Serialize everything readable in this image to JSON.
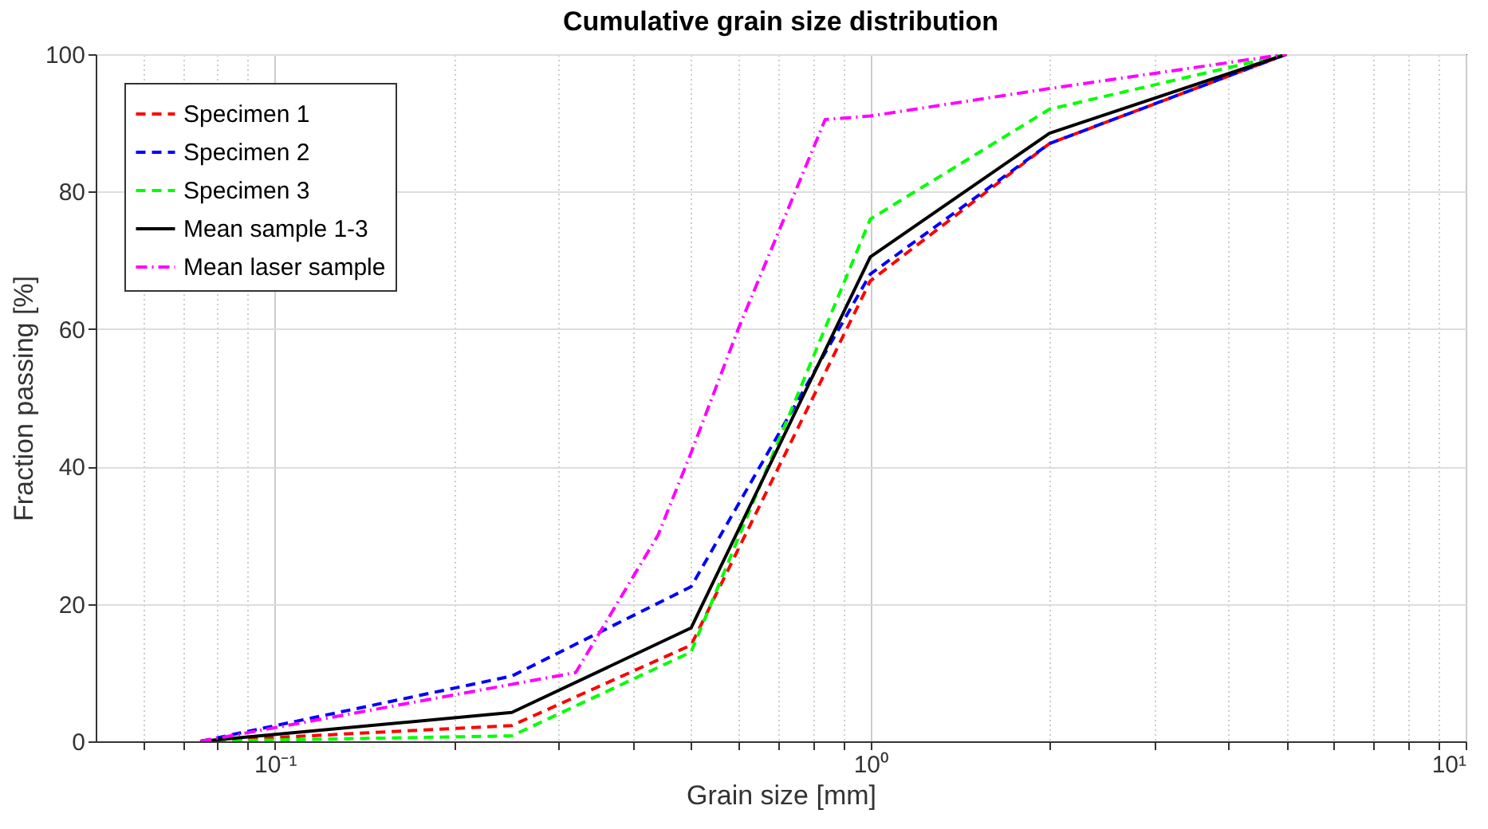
{
  "chart_data": {
    "type": "line",
    "title": "Cumulative grain size distribution",
    "xlabel": "Grain size [mm]",
    "ylabel": "Fraction passing [%]",
    "log": "x",
    "xlim": [
      0.05,
      10
    ],
    "ylim": [
      0,
      100
    ],
    "xticks": [
      {
        "value": 0.06,
        "label": null
      },
      {
        "value": 0.07,
        "label": null
      },
      {
        "value": 0.08,
        "label": null
      },
      {
        "value": 0.09,
        "label": null
      },
      {
        "value": 0.1,
        "label": "10⁻¹"
      },
      {
        "value": 0.2,
        "label": null
      },
      {
        "value": 0.3,
        "label": null
      },
      {
        "value": 0.4,
        "label": null
      },
      {
        "value": 0.5,
        "label": null
      },
      {
        "value": 0.6,
        "label": null
      },
      {
        "value": 0.7,
        "label": null
      },
      {
        "value": 0.8,
        "label": null
      },
      {
        "value": 0.9,
        "label": null
      },
      {
        "value": 1,
        "label": "10⁰"
      },
      {
        "value": 2,
        "label": null
      },
      {
        "value": 3,
        "label": null
      },
      {
        "value": 4,
        "label": null
      },
      {
        "value": 5,
        "label": null
      },
      {
        "value": 6,
        "label": null
      },
      {
        "value": 7,
        "label": null
      },
      {
        "value": 8,
        "label": null
      },
      {
        "value": 9,
        "label": null
      },
      {
        "value": 10,
        "label": "10¹"
      }
    ],
    "yticks": [
      0,
      20,
      40,
      60,
      80,
      100
    ],
    "grid": true,
    "legend": "top left",
    "series": [
      {
        "name": "Specimen 1",
        "color": "#ff0000",
        "line_style": "dashed",
        "x": [
          0.075,
          0.25,
          0.5,
          1,
          2,
          5
        ],
        "values": [
          0,
          2.3,
          14,
          67,
          87,
          100
        ]
      },
      {
        "name": "Specimen 2",
        "color": "#0000ff",
        "line_style": "dashed",
        "x": [
          0.075,
          0.25,
          0.5,
          1,
          2,
          5
        ],
        "values": [
          0,
          9.5,
          22.5,
          68,
          87,
          100
        ]
      },
      {
        "name": "Specimen 3",
        "color": "#00ff00",
        "line_style": "dashed",
        "x": [
          0.075,
          0.25,
          0.5,
          1,
          2,
          5
        ],
        "values": [
          0,
          0.8,
          13,
          76,
          92,
          100
        ]
      },
      {
        "name": "Mean sample 1-3",
        "color": "#000000",
        "line_style": "solid",
        "x": [
          0.075,
          0.25,
          0.5,
          1,
          2,
          5
        ],
        "values": [
          0,
          4.2,
          16.5,
          70.5,
          88.5,
          100
        ]
      },
      {
        "name": "Mean laser sample",
        "color": "#ff00ff",
        "line_style": "dashdot",
        "x": [
          0.075,
          0.32,
          0.44,
          0.5,
          0.6,
          0.84,
          1,
          2,
          5
        ],
        "values": [
          0,
          10,
          30,
          42,
          60,
          90.5,
          91,
          95,
          100
        ]
      }
    ]
  }
}
